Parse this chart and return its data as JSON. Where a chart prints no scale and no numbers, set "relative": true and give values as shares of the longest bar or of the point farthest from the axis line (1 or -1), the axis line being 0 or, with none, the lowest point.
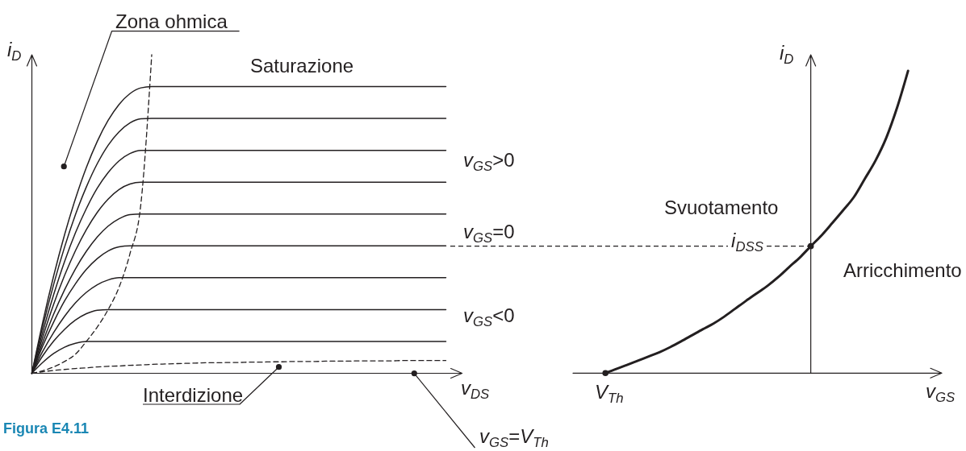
{
  "chart_data": [
    {
      "type": "line",
      "relative": true,
      "line_style": "solid",
      "xlabel": "v$_{DS}$",
      "ylabel": "i$_{D}$",
      "categories": [
        null,
        null,
        null,
        null,
        null,
        null,
        null,
        null,
        null,
        null,
        null,
        null,
        null,
        null,
        null,
        null,
        null,
        null,
        null,
        null,
        null,
        null,
        null,
        null,
        null,
        null,
        null,
        null,
        null,
        null,
        null,
        null,
        null,
        null,
        null,
        null,
        null,
        null,
        null
      ],
      "series": [
        {
          "color": "#231f20",
          "values": [
            0,
            0.161,
            0.306,
            0.435,
            0.548,
            0.646,
            0.728,
            0.794,
            0.844,
            0.878,
            0.896,
            0.9,
            0.9,
            0.9,
            0.9,
            0.9,
            0.9,
            0.9,
            0.9,
            0.9,
            0.9,
            0.9,
            0.9,
            0.9,
            0.9,
            0.9,
            0.9,
            0.9,
            0.9,
            0.9,
            0.9,
            0.9,
            0.9,
            0.9,
            0.9,
            0.9,
            0.9,
            0.9,
            0.9
          ]
        },
        {
          "color": "#231f20",
          "values": [
            0,
            0.147,
            0.279,
            0.396,
            0.498,
            0.585,
            0.658,
            0.716,
            0.758,
            0.786,
            0.799,
            0.8,
            0.8,
            0.8,
            0.8,
            0.8,
            0.8,
            0.8,
            0.8,
            0.8,
            0.8,
            0.8,
            0.8,
            0.8,
            0.8,
            0.8,
            0.8,
            0.8,
            0.8,
            0.8,
            0.8,
            0.8,
            0.8,
            0.8,
            0.8,
            0.8,
            0.8,
            0.8,
            0.8
          ]
        },
        {
          "color": "#231f20",
          "values": [
            0,
            0.13,
            0.247,
            0.351,
            0.441,
            0.517,
            0.581,
            0.63,
            0.667,
            0.69,
            0.7,
            0.7,
            0.7,
            0.7,
            0.7,
            0.7,
            0.7,
            0.7,
            0.7,
            0.7,
            0.7,
            0.7,
            0.7,
            0.7,
            0.7,
            0.7,
            0.7,
            0.7,
            0.7,
            0.7,
            0.7,
            0.7,
            0.7,
            0.7,
            0.7,
            0.7,
            0.7,
            0.7,
            0.7
          ]
        },
        {
          "color": "#231f20",
          "values": [
            0,
            0.114,
            0.217,
            0.307,
            0.385,
            0.451,
            0.505,
            0.547,
            0.577,
            0.594,
            0.6,
            0.6,
            0.6,
            0.6,
            0.6,
            0.6,
            0.6,
            0.6,
            0.6,
            0.6,
            0.6,
            0.6,
            0.6,
            0.6,
            0.6,
            0.6,
            0.6,
            0.6,
            0.6,
            0.6,
            0.6,
            0.6,
            0.6,
            0.6,
            0.6,
            0.6,
            0.6,
            0.6,
            0.6
          ]
        },
        {
          "color": "#231f20",
          "values": [
            0,
            0.098,
            0.186,
            0.262,
            0.328,
            0.383,
            0.428,
            0.462,
            0.485,
            0.498,
            0.5,
            0.5,
            0.5,
            0.5,
            0.5,
            0.5,
            0.5,
            0.5,
            0.5,
            0.5,
            0.5,
            0.5,
            0.5,
            0.5,
            0.5,
            0.5,
            0.5,
            0.5,
            0.5,
            0.5,
            0.5,
            0.5,
            0.5,
            0.5,
            0.5,
            0.5,
            0.5,
            0.5,
            0.5
          ]
        },
        {
          "color": "#231f20",
          "values": [
            0,
            0.086,
            0.161,
            0.227,
            0.281,
            0.326,
            0.36,
            0.384,
            0.397,
            0.4,
            0.4,
            0.4,
            0.4,
            0.4,
            0.4,
            0.4,
            0.4,
            0.4,
            0.4,
            0.4,
            0.4,
            0.4,
            0.4,
            0.4,
            0.4,
            0.4,
            0.4,
            0.4,
            0.4,
            0.4,
            0.4,
            0.4,
            0.4,
            0.4,
            0.4,
            0.4,
            0.4,
            0.4,
            0.4
          ]
        },
        {
          "color": "#231f20",
          "values": [
            0,
            0.069,
            0.128,
            0.179,
            0.221,
            0.254,
            0.278,
            0.293,
            0.3,
            0.3,
            0.3,
            0.3,
            0.3,
            0.3,
            0.3,
            0.3,
            0.3,
            0.3,
            0.3,
            0.3,
            0.3,
            0.3,
            0.3,
            0.3,
            0.3,
            0.3,
            0.3,
            0.3,
            0.3,
            0.3,
            0.3,
            0.3,
            0.3,
            0.3,
            0.3,
            0.3,
            0.3,
            0.3,
            0.3
          ]
        },
        {
          "color": "#231f20",
          "values": [
            0,
            0.055,
            0.101,
            0.138,
            0.167,
            0.187,
            0.198,
            0.2,
            0.2,
            0.2,
            0.2,
            0.2,
            0.2,
            0.2,
            0.2,
            0.2,
            0.2,
            0.2,
            0.2,
            0.2,
            0.2,
            0.2,
            0.2,
            0.2,
            0.2,
            0.2,
            0.2,
            0.2,
            0.2,
            0.2,
            0.2,
            0.2,
            0.2,
            0.2,
            0.2,
            0.2,
            0.2,
            0.2,
            0.2
          ]
        },
        {
          "color": "#231f20",
          "values": [
            0,
            0.034,
            0.062,
            0.082,
            0.094,
            0.1,
            0.1,
            0.1,
            0.1,
            0.1,
            0.1,
            0.1,
            0.1,
            0.1,
            0.1,
            0.1,
            0.1,
            0.1,
            0.1,
            0.1,
            0.1,
            0.1,
            0.1,
            0.1,
            0.1,
            0.1,
            0.1,
            0.1,
            0.1,
            0.1,
            0.1,
            0.1,
            0.1,
            0.1,
            0.1,
            0.1,
            0.1,
            0.1,
            0.1
          ]
        },
        {
          "color": "#231f20",
          "line_style": "dashed",
          "values": [
            0,
            0.008,
            0.02,
            0.037,
            0.06,
            0.1,
            0.145,
            0.2,
            0.27,
            0.375,
            0.53,
            1,
            null,
            null,
            null,
            null,
            null,
            null,
            null,
            null,
            null,
            null,
            null,
            null,
            null,
            null,
            null,
            null,
            null,
            null,
            null,
            null,
            null,
            null,
            null,
            null,
            null,
            null,
            null
          ]
        },
        {
          "color": "#231f20",
          "line_style": "dashed",
          "values": [
            0,
            0.005,
            0.009,
            0.012,
            0.015,
            0.017,
            0.02,
            0.022,
            0.023,
            0.025,
            0.026,
            0.028,
            0.029,
            0.03,
            0.031,
            0.032,
            0.033,
            0.033,
            0.034,
            0.034,
            0.035,
            0.035,
            0.036,
            0.036,
            0.037,
            0.037,
            0.037,
            0.038,
            0.038,
            0.038,
            0.039,
            0.039,
            0.039,
            0.039,
            0.04,
            0.04,
            0.04,
            0.04,
            0.04
          ]
        }
      ],
      "annotations": [
        "Zona ohmica",
        "Saturazione",
        "v$_{GS}$>0",
        "v$_{GS}$=0",
        "v$_{GS}$<0",
        "Interdizione",
        "v$_{GS}$=V$_{Th}$",
        "Figura E4.11"
      ]
    },
    {
      "type": "line",
      "relative": true,
      "line_style": "solid",
      "xlabel": "v$_{GS}$",
      "ylabel": "i$_{D}$",
      "categories": [
        null,
        null,
        null,
        null,
        null,
        null,
        null,
        null,
        null,
        null,
        null,
        null,
        null,
        null,
        null,
        null,
        null,
        null,
        null,
        null,
        null,
        null,
        null,
        null,
        null,
        null,
        null,
        null,
        null,
        null,
        null,
        null
      ],
      "series": [
        {
          "color": "#231f20",
          "values": [
            null,
            null,
            null,
            0,
            0.014,
            0.027,
            0.041,
            0.055,
            0.069,
            0.086,
            0.105,
            0.125,
            0.145,
            0.164,
            0.187,
            0.213,
            0.239,
            0.264,
            0.289,
            0.318,
            0.351,
            0.383,
            0.42,
            0.456,
            0.497,
            0.539,
            0.583,
            0.643,
            0.704,
            0.78,
            0.88,
            1
          ]
        }
      ],
      "ref_lines": [
        {
          "axis": "y",
          "value": 0.42,
          "label": "i$_{DSS}$",
          "line_style": "dashed",
          "color": "#231f20"
        }
      ],
      "annotations": [
        "Svuotamento",
        "Arricchimento",
        "V$_{Th}$"
      ]
    }
  ]
}
